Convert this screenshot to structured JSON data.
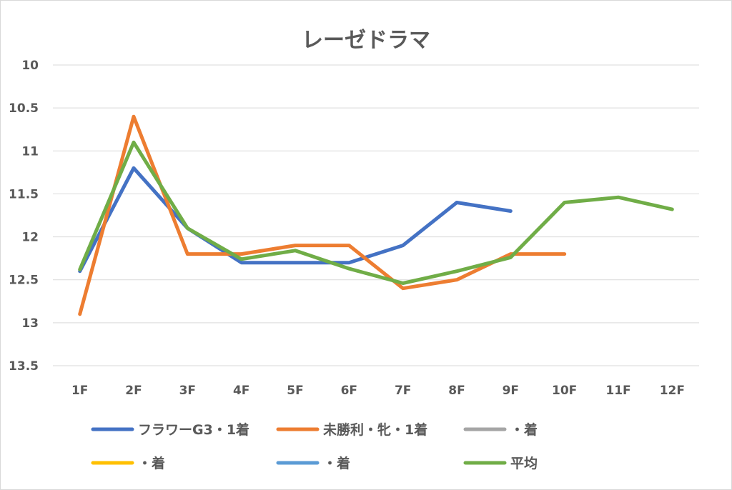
{
  "chart_data": {
    "type": "line",
    "title": "レーゼドラマ",
    "y_axis": {
      "reversed": true,
      "min": 10,
      "max": 13.5,
      "step": 0.5
    },
    "y_tick_labels": [
      "10",
      "10.5",
      "11",
      "11.5",
      "12",
      "12.5",
      "13",
      "13.5"
    ],
    "categories": [
      "1F",
      "2F",
      "3F",
      "4F",
      "5F",
      "6F",
      "7F",
      "8F",
      "9F",
      "10F",
      "11F",
      "12F"
    ],
    "grid": true,
    "legend_position": "bottom",
    "series": [
      {
        "name": "フラワーG3・1着",
        "color": "#4472c4",
        "values": [
          12.4,
          11.2,
          11.9,
          12.3,
          12.3,
          12.3,
          12.1,
          11.6,
          11.7,
          null,
          null,
          null
        ]
      },
      {
        "name": "未勝利・牝・1着",
        "color": "#ed7d31",
        "values": [
          12.9,
          10.6,
          12.2,
          12.2,
          12.1,
          12.1,
          12.6,
          12.5,
          12.2,
          12.2,
          null,
          null
        ]
      },
      {
        "name": "・着",
        "color": "#a5a5a5",
        "values": [
          null,
          null,
          null,
          null,
          null,
          null,
          null,
          null,
          null,
          null,
          null,
          null
        ]
      },
      {
        "name": "・着",
        "color": "#ffc000",
        "values": [
          null,
          null,
          null,
          null,
          null,
          null,
          null,
          null,
          null,
          null,
          null,
          null
        ]
      },
      {
        "name": "・着",
        "color": "#5b9bd5",
        "values": [
          null,
          null,
          null,
          null,
          null,
          null,
          null,
          null,
          null,
          null,
          null,
          null
        ]
      },
      {
        "name": "平均",
        "color": "#70ad47",
        "values": [
          12.38,
          10.9,
          11.9,
          12.26,
          12.16,
          12.37,
          12.54,
          12.4,
          12.24,
          11.6,
          11.54,
          11.68
        ]
      }
    ]
  }
}
